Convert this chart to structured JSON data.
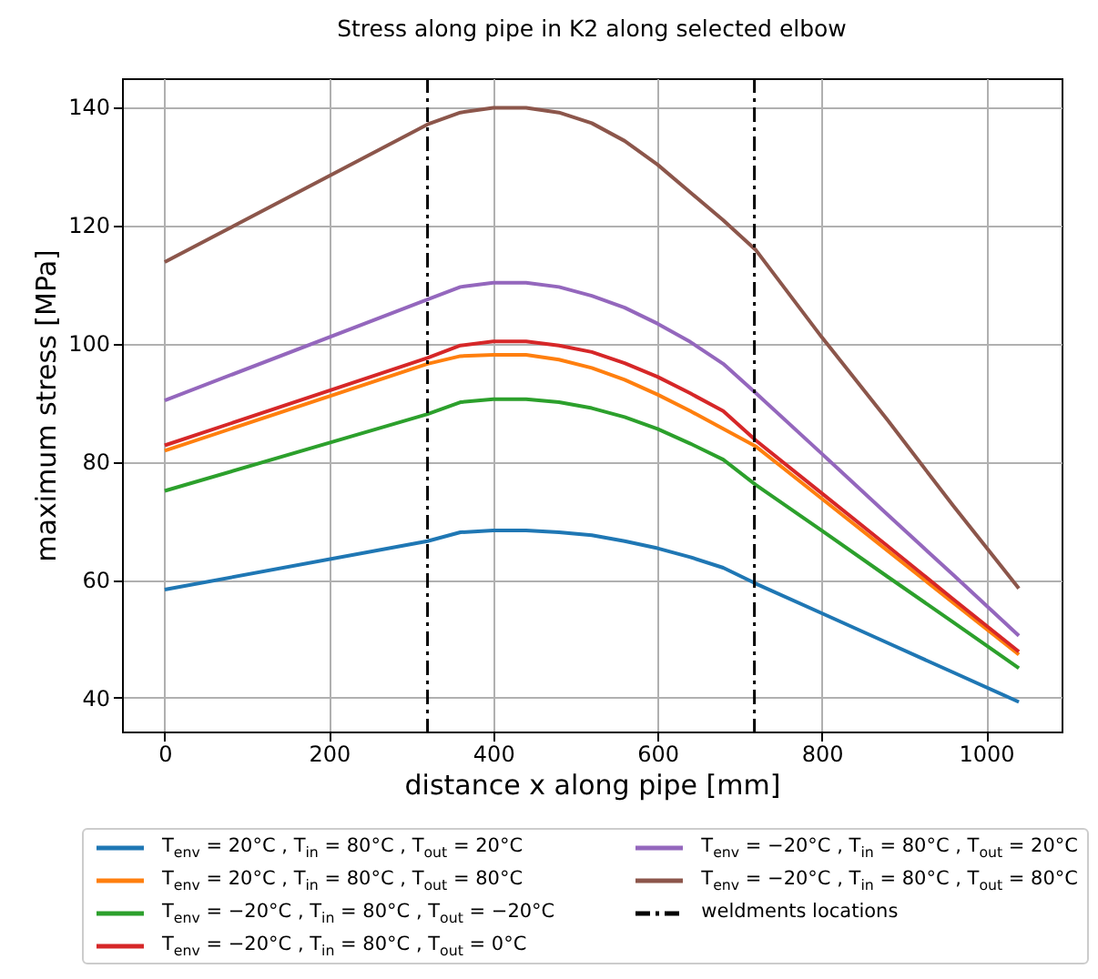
{
  "chart_data": {
    "type": "line",
    "title": "Stress along pipe in K2 along selected elbow",
    "xlabel": "distance x along pipe [mm]",
    "ylabel": "maximum stress [MPa]",
    "x": [
      0,
      320,
      360,
      400,
      440,
      480,
      520,
      560,
      600,
      640,
      680,
      720,
      800,
      880,
      960,
      1040
    ],
    "series": [
      {
        "name": "T$_{env}$ = 20°C , T$_{in}$ = 80°C , T$_{out}$ = 20°C",
        "color": "#1f77b4",
        "values": [
          58.3,
          66.5,
          68,
          68.3,
          68.3,
          68,
          67.5,
          66.5,
          65.3,
          63.8,
          62,
          59.3,
          54.3,
          49.3,
          44.3,
          39.3
        ]
      },
      {
        "name": "T$_{env}$ = 20°C , T$_{in}$ = 80°C , T$_{out}$ = 80°C",
        "color": "#ff7f0e",
        "values": [
          81.8,
          96.5,
          97.8,
          98,
          98,
          97.2,
          95.8,
          93.8,
          91.3,
          88.5,
          85.5,
          82.5,
          73.7,
          64.9,
          56.1,
          47.3
        ]
      },
      {
        "name": "T$_{env}$ = −20°C , T$_{in}$ = 80°C , T$_{out}$ = −20°C",
        "color": "#2ca02c",
        "values": [
          75,
          88,
          90,
          90.5,
          90.5,
          90,
          89,
          87.5,
          85.5,
          83,
          80.3,
          76,
          68.3,
          60.5,
          52.8,
          45
        ]
      },
      {
        "name": "T$_{env}$ = −20°C , T$_{in}$ = 80°C , T$_{out}$ = 0°C",
        "color": "#d62728",
        "values": [
          82.7,
          97.5,
          99.6,
          100.3,
          100.3,
          99.6,
          98.5,
          96.6,
          94.3,
          91.5,
          88.5,
          83.5,
          74.6,
          65.7,
          56.7,
          47.8
        ]
      },
      {
        "name": "T$_{env}$ = −20°C , T$_{in}$ = 80°C , T$_{out}$ = 20°C",
        "color": "#9467bd",
        "values": [
          90.3,
          107.4,
          109.5,
          110.2,
          110.2,
          109.5,
          108,
          106,
          103.3,
          100.2,
          96.5,
          91.5,
          81.3,
          71,
          60.8,
          50.5
        ]
      },
      {
        "name": "T$_{env}$ = −20°C , T$_{in}$ = 80°C , T$_{out}$ = 80°C",
        "color": "#8c564b",
        "values": [
          113.7,
          137,
          139,
          139.8,
          139.8,
          139,
          137.2,
          134.2,
          130.2,
          125.5,
          120.8,
          115.7,
          101,
          87,
          72.5,
          58.5
        ]
      }
    ],
    "ref_lines": [
      {
        "axis": "x",
        "value": 320,
        "label": "weldments locations",
        "color": "#000000"
      },
      {
        "axis": "x",
        "value": 718,
        "color": "#000000"
      }
    ],
    "xlim": [
      -52,
      1092
    ],
    "ylim": [
      34.3,
      144.8
    ],
    "xticks": [
      0,
      200,
      400,
      600,
      800,
      1000
    ],
    "yticks": [
      40,
      60,
      80,
      100,
      120,
      140
    ],
    "grid": true,
    "legend": "bottom",
    "marker": "none",
    "line_style": "solid"
  }
}
